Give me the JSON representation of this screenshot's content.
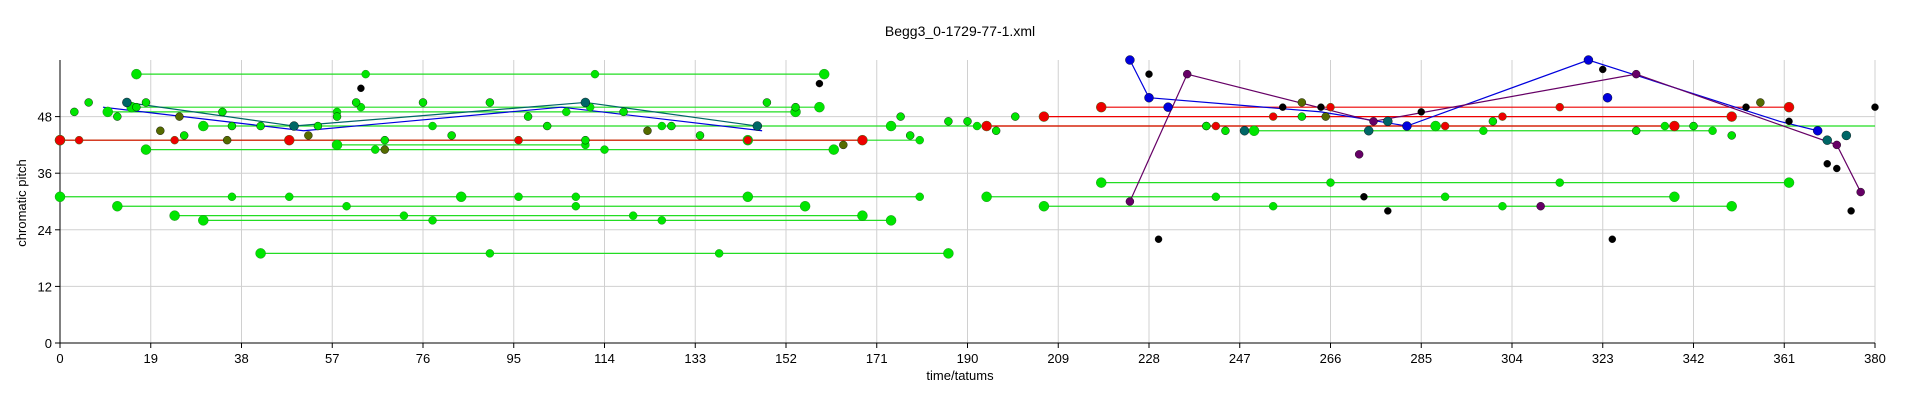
{
  "chart_data": {
    "type": "scatter",
    "title": "Begg3_0-1729-77-1.xml",
    "xlabel": "time/tatums",
    "ylabel": "chromatic pitch",
    "xlim": [
      0,
      380
    ],
    "ylim": [
      0,
      60
    ],
    "xticks": [
      0,
      19,
      38,
      57,
      76,
      95,
      114,
      133,
      152,
      171,
      190,
      209,
      228,
      247,
      266,
      285,
      304,
      323,
      342,
      361,
      380
    ],
    "yticks": [
      0,
      12,
      24,
      36,
      48
    ],
    "grid": true,
    "colors": {
      "green": "#00e600",
      "red": "#ee0000",
      "blue": "#0000dd",
      "teal": "#006666",
      "black": "#000000",
      "olive": "#556b00",
      "purple": "#660066",
      "bright_green_line": "#22dd22"
    },
    "green_segments": [
      {
        "y": 57,
        "x": [
          16,
          64,
          112,
          160
        ]
      },
      {
        "y": 31,
        "x": [
          0,
          36,
          48,
          84,
          96,
          108,
          144,
          180
        ]
      },
      {
        "y": 29,
        "x": [
          12,
          60,
          108,
          156
        ]
      },
      {
        "y": 27,
        "x": [
          24,
          72,
          120,
          168
        ]
      },
      {
        "y": 26,
        "x": [
          30,
          78,
          126,
          174
        ]
      },
      {
        "y": 41,
        "x": [
          18,
          66,
          114,
          162
        ]
      },
      {
        "y": 19,
        "x": [
          42,
          90,
          138,
          186
        ]
      },
      {
        "y": 43,
        "x": [
          0,
          48,
          96,
          144,
          180
        ]
      },
      {
        "y": 50,
        "x": [
          15,
          63,
          111,
          159
        ]
      },
      {
        "y": 46,
        "x": [
          30,
          78,
          126,
          174,
          192,
          240,
          288,
          336,
          384
        ]
      },
      {
        "y": 34,
        "x": [
          218,
          266,
          314,
          362
        ]
      },
      {
        "y": 29,
        "x": [
          206,
          254,
          302,
          350
        ]
      },
      {
        "y": 31,
        "x": [
          194,
          242,
          290,
          338
        ]
      },
      {
        "y": 45,
        "x": [
          250,
          298,
          346
        ]
      },
      {
        "y": 49,
        "x": [
          10,
          58,
          106,
          154
        ]
      },
      {
        "y": 42,
        "x": [
          58,
          110
        ]
      }
    ],
    "red_segments": [
      {
        "y": 43,
        "x": [
          0,
          4,
          24,
          48,
          96,
          144,
          168
        ]
      },
      {
        "y": 48,
        "x": [
          206,
          254,
          302,
          350
        ]
      },
      {
        "y": 46,
        "x": [
          194,
          242,
          290,
          338
        ]
      },
      {
        "y": 50,
        "x": [
          218,
          266,
          314,
          362
        ]
      }
    ],
    "blue_polyline": [
      [
        9,
        50
      ],
      [
        51,
        45
      ],
      [
        105,
        50
      ],
      [
        147,
        45
      ]
    ],
    "blue_polyline_2": [
      [
        224,
        60
      ],
      [
        228,
        52
      ],
      [
        264,
        49
      ],
      [
        282,
        46
      ],
      [
        320,
        60
      ],
      [
        360,
        47
      ],
      [
        368,
        45
      ]
    ],
    "teal_polyline": [
      [
        14,
        51
      ],
      [
        49,
        46
      ],
      [
        110,
        51
      ],
      [
        146,
        46
      ]
    ],
    "purple_polyline": [
      [
        224,
        30
      ],
      [
        236,
        57
      ],
      [
        275,
        47
      ],
      [
        330,
        57
      ],
      [
        372,
        42
      ],
      [
        377,
        32
      ]
    ],
    "green_markers": [
      [
        3,
        49
      ],
      [
        6,
        51
      ],
      [
        12,
        48
      ],
      [
        16,
        50
      ],
      [
        18,
        51
      ],
      [
        26,
        44
      ],
      [
        34,
        49
      ],
      [
        36,
        46
      ],
      [
        42,
        46
      ],
      [
        54,
        46
      ],
      [
        58,
        48
      ],
      [
        62,
        51
      ],
      [
        68,
        43
      ],
      [
        76,
        51
      ],
      [
        82,
        44
      ],
      [
        90,
        51
      ],
      [
        98,
        48
      ],
      [
        102,
        46
      ],
      [
        110,
        43
      ],
      [
        118,
        49
      ],
      [
        128,
        46
      ],
      [
        134,
        44
      ],
      [
        148,
        51
      ],
      [
        154,
        50
      ],
      [
        176,
        48
      ],
      [
        178,
        44
      ],
      [
        186,
        47
      ],
      [
        190,
        47
      ],
      [
        196,
        45
      ],
      [
        200,
        48
      ],
      [
        240,
        46
      ],
      [
        244,
        45
      ],
      [
        260,
        48
      ],
      [
        300,
        47
      ],
      [
        330,
        45
      ],
      [
        342,
        46
      ],
      [
        350,
        44
      ]
    ],
    "black_markers": [
      [
        63,
        54
      ],
      [
        159,
        55
      ],
      [
        228,
        57
      ],
      [
        256,
        50
      ],
      [
        264,
        50
      ],
      [
        285,
        49
      ],
      [
        323,
        58
      ],
      [
        353,
        50
      ],
      [
        362,
        47
      ],
      [
        370,
        38
      ],
      [
        372,
        37
      ],
      [
        273,
        31
      ],
      [
        278,
        28
      ],
      [
        375,
        28
      ],
      [
        230,
        22
      ],
      [
        325,
        22
      ],
      [
        380,
        50
      ]
    ],
    "olive_markers": [
      [
        21,
        45
      ],
      [
        25,
        48
      ],
      [
        35,
        43
      ],
      [
        52,
        44
      ],
      [
        68,
        41
      ],
      [
        123,
        45
      ],
      [
        164,
        42
      ],
      [
        260,
        51
      ],
      [
        356,
        51
      ],
      [
        265,
        48
      ]
    ],
    "teal_markers": [
      [
        14,
        51
      ],
      [
        49,
        46
      ],
      [
        110,
        51
      ],
      [
        146,
        46
      ],
      [
        248,
        45
      ],
      [
        274,
        45
      ],
      [
        278,
        47
      ],
      [
        370,
        43
      ],
      [
        374,
        44
      ]
    ],
    "purple_markers": [
      [
        224,
        30
      ],
      [
        236,
        57
      ],
      [
        272,
        40
      ],
      [
        275,
        47
      ],
      [
        310,
        29
      ],
      [
        330,
        57
      ],
      [
        372,
        42
      ],
      [
        377,
        32
      ]
    ],
    "blue_markers": [
      [
        224,
        60
      ],
      [
        228,
        52
      ],
      [
        232,
        50
      ],
      [
        282,
        46
      ],
      [
        320,
        60
      ],
      [
        324,
        52
      ],
      [
        368,
        45
      ]
    ]
  }
}
